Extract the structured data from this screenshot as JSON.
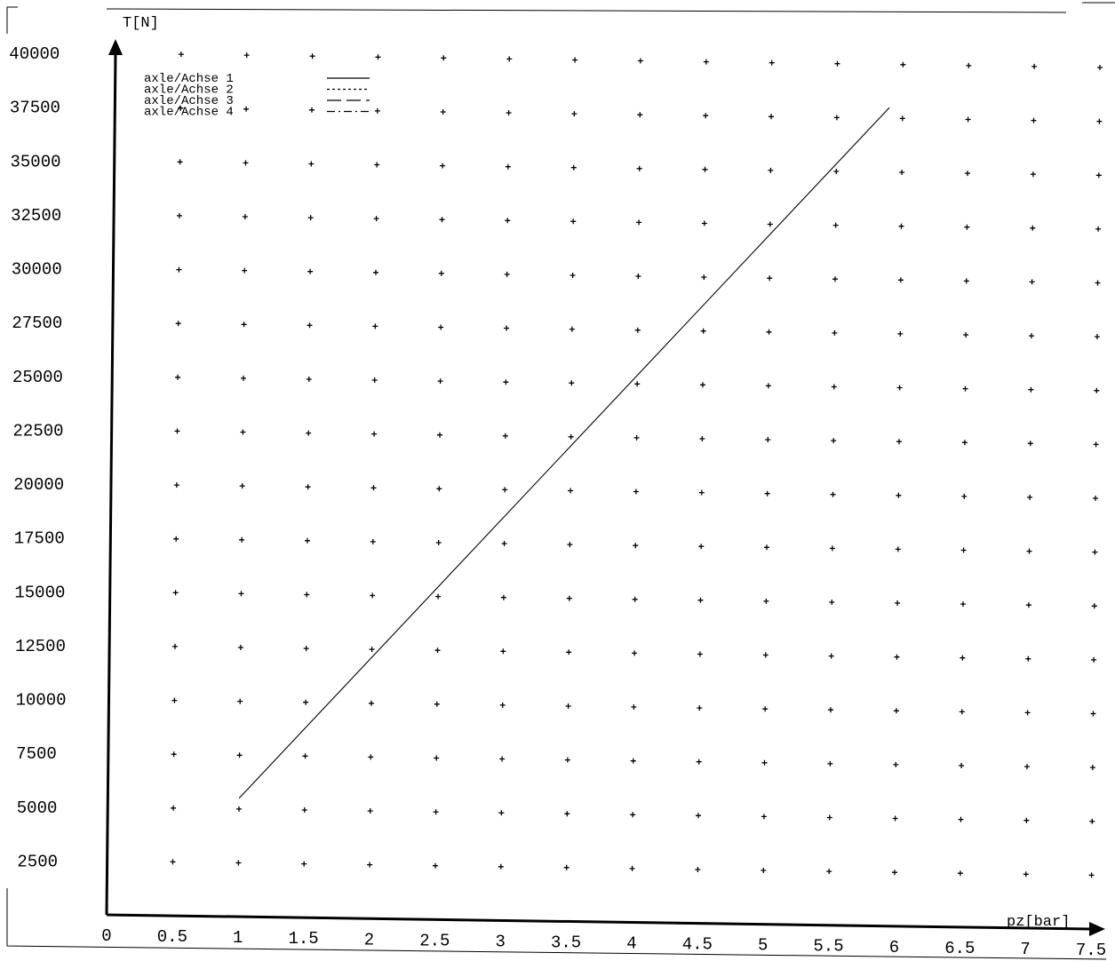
{
  "chart_data": {
    "type": "line",
    "xlabel": "pz[bar]",
    "ylabel": "T[N]",
    "xlim": [
      0,
      7.5
    ],
    "ylim": [
      0,
      40000
    ],
    "x_ticks": [
      "0",
      "0.5",
      "1",
      "1.5",
      "2",
      "2.5",
      "3",
      "3.5",
      "4",
      "4.5",
      "5",
      "5.5",
      "6",
      "6.5",
      "7",
      "7.5"
    ],
    "y_ticks": [
      "2500",
      "5000",
      "7500",
      "10000",
      "12500",
      "15000",
      "17500",
      "20000",
      "22500",
      "25000",
      "27500",
      "30000",
      "32500",
      "35000",
      "37500",
      "40000"
    ],
    "grid": "point markers (+) at every tick intersection",
    "legend": {
      "placement": "top-left",
      "entries": [
        {
          "label": "axle/Achse 1",
          "style": "solid"
        },
        {
          "label": "axle/Achse 2",
          "style": "dotted"
        },
        {
          "label": "axle/Achse 3",
          "style": "long-dash"
        },
        {
          "label": "axle/Achse 4",
          "style": "dash-dot"
        }
      ]
    },
    "series": [
      {
        "name": "axle/Achse 1",
        "style": "solid",
        "x": [
          1.0,
          5.9
        ],
        "y": [
          5500,
          38000
        ]
      }
    ]
  }
}
